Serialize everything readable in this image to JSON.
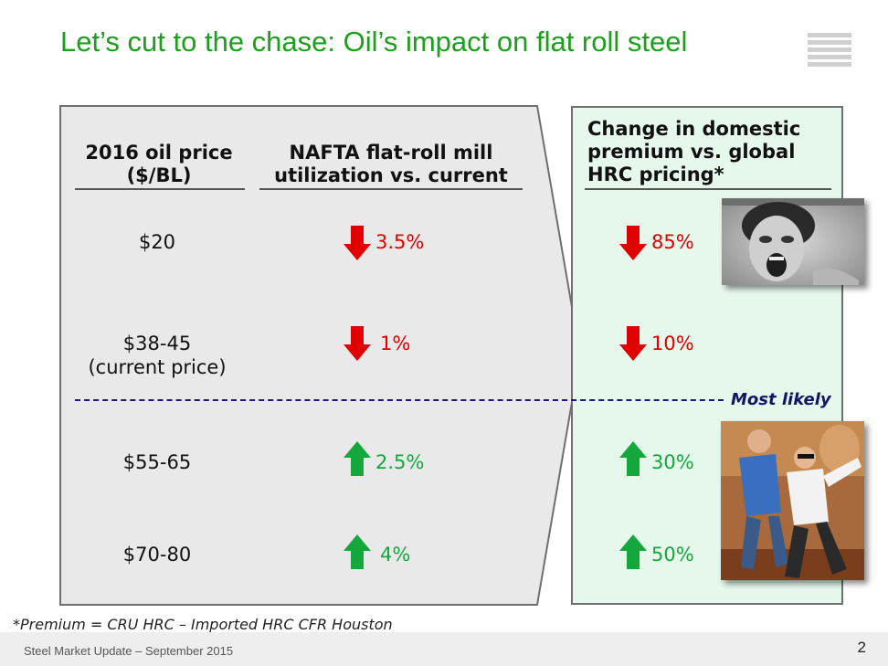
{
  "title": "Let’s cut to the chase: Oil’s impact on flat roll steel",
  "headers": {
    "oil_price_line1": "2016 oil price",
    "oil_price_line2": "($/BL)",
    "nafta_line1": "NAFTA flat-roll mill",
    "nafta_line2": "utilization vs. current",
    "change_line1": "Change in domestic",
    "change_line2": "premium vs. global",
    "change_line3": "HRC pricing*"
  },
  "rows": [
    {
      "price": "$20",
      "price_sub": "",
      "utilization": "3.5%",
      "utilization_dir": "down",
      "premium": "85%",
      "premium_dir": "down"
    },
    {
      "price": "$38-45",
      "price_sub": "(current price)",
      "utilization": "1%",
      "utilization_dir": "down",
      "premium": "10%",
      "premium_dir": "down"
    },
    {
      "price": "$55-65",
      "price_sub": "",
      "utilization": "2.5%",
      "utilization_dir": "up",
      "premium": "30%",
      "premium_dir": "up"
    },
    {
      "price": "$70-80",
      "price_sub": "",
      "utilization": "4%",
      "utilization_dir": "up",
      "premium": "50%",
      "premium_dir": "up"
    }
  ],
  "most_likely": "Most likely",
  "footnote": "*Premium = CRU HRC – Imported HRC CFR Houston",
  "footer": {
    "text": "Steel Market Update – September 2015",
    "page": "2"
  },
  "colors": {
    "title": "#1aa01a",
    "down": "#e00000",
    "up": "#14a83c",
    "right_panel": "#e6f7ec"
  }
}
